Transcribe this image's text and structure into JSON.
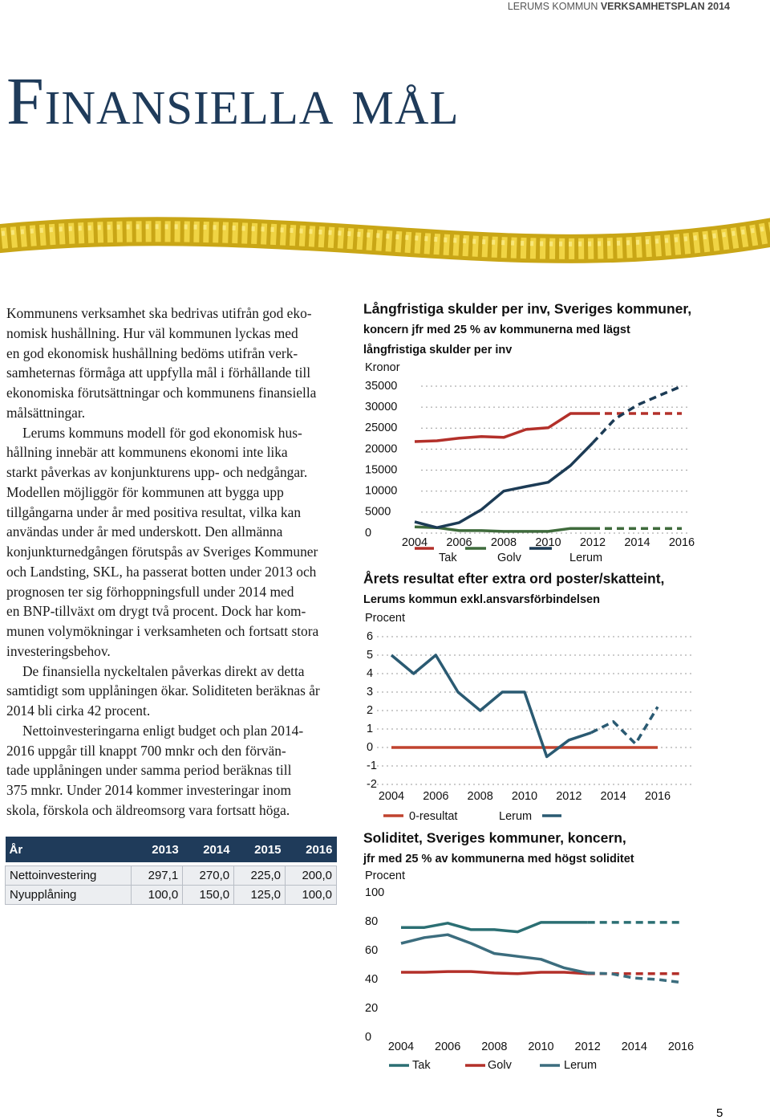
{
  "header": {
    "org": "LERUMS KOMMUN",
    "doc": "VERKSAMHETSPLAN 2014"
  },
  "title": "Finansiella mål",
  "paragraphs": [
    [
      "Kommunens verksamhet ska bedrivas utifrån god eko-",
      "nomisk hushållning. Hur väl kommunen lyckas med",
      "en god ekonomisk hushållning bedöms utifrån verk-",
      "samheternas förmåga att uppfylla mål i förhållande till",
      "ekonomiska förutsättningar och kommunens finansiella",
      "målsättningar."
    ],
    [
      "Lerums kommuns modell för god ekonomisk hus-",
      "hållning innebär att kommunens ekonomi inte lika",
      "starkt påverkas av konjunkturens upp- och nedgångar.",
      "Modellen möjliggör för kommunen att bygga upp",
      "tillgångarna under år med positiva resultat, vilka kan",
      "användas under år med underskott. Den allmänna",
      "konjunkturnedgången förutspås av Sveriges Kommuner",
      "och Landsting, SKL, ha passerat botten under 2013 och",
      "prognosen ter sig förhoppningsfull under 2014 med",
      "en BNP-tillväxt om drygt två procent. Dock har kom-",
      "munen volymökningar i verksamheten och fortsatt stora",
      "investeringsbehov."
    ],
    [
      "De finansiella nyckeltalen påverkas direkt av detta",
      "samtidigt som upplåningen ökar. Soliditeten beräknas år",
      "2014 bli cirka 42 procent."
    ],
    [
      "Nettoinvesteringarna enligt budget och plan 2014-",
      "2016 uppgår till knappt 700 mnkr och den förvän-",
      "tade upplåningen under samma period beräknas till",
      "375 mnkr. Under 2014 kommer investeringar inom",
      "skola, förskola och äldreomsorg vara fortsatt höga."
    ]
  ],
  "table": {
    "header": [
      "År",
      "2013",
      "2014",
      "2015",
      "2016"
    ],
    "rows": [
      [
        "Nettoinvestering",
        "297,1",
        "270,0",
        "225,0",
        "200,0"
      ],
      [
        "Nyupplåning",
        "100,0",
        "150,0",
        "125,0",
        "100,0"
      ]
    ]
  },
  "chart_data": [
    {
      "type": "line",
      "title": "Långfristiga skulder per inv, Sveriges kommuner,",
      "subtitle": [
        "koncern jfr med 25 % av kommunerna med lägst",
        "långfristiga skulder per inv"
      ],
      "y_label": "Kronor",
      "x": [
        2004,
        2005,
        2006,
        2007,
        2008,
        2009,
        2010,
        2011,
        2012,
        2013,
        2014,
        2015,
        2016
      ],
      "xlim": [
        2004,
        2016
      ],
      "xticks": [
        2004,
        2006,
        2008,
        2010,
        2012,
        2014,
        2016
      ],
      "ylim": [
        0,
        35000
      ],
      "yticks": [
        0,
        5000,
        10000,
        15000,
        20000,
        25000,
        30000,
        35000
      ],
      "grid": true,
      "dashed_from": 2012,
      "series": [
        {
          "name": "Tak",
          "color": "#b3302a",
          "values": [
            21800,
            22000,
            22600,
            23000,
            22800,
            24700,
            25100,
            28500,
            28500,
            28500,
            28500,
            28500,
            28500
          ]
        },
        {
          "name": "Golv",
          "color": "#3f6b3c",
          "values": [
            1500,
            1300,
            600,
            600,
            400,
            400,
            400,
            1100,
            1100,
            1100,
            1100,
            1100,
            1100
          ]
        },
        {
          "name": "Lerum",
          "color": "#1c3b55",
          "values": [
            2700,
            1300,
            2500,
            5600,
            10000,
            11100,
            12100,
            16100,
            21500,
            27200,
            30500,
            32800,
            35000
          ]
        }
      ]
    },
    {
      "type": "line",
      "title": "Årets resultat efter extra ord poster/skatteint,",
      "subtitle": [
        "Lerums kommun exkl.ansvarsförbindelsen"
      ],
      "y_label": "Procent",
      "x": [
        2004,
        2005,
        2006,
        2007,
        2008,
        2009,
        2010,
        2011,
        2012,
        2013,
        2014,
        2015,
        2016
      ],
      "xlim": [
        2004,
        2016
      ],
      "xticks": [
        2004,
        2006,
        2008,
        2010,
        2012,
        2014,
        2016
      ],
      "ylim": [
        -2,
        6
      ],
      "yticks": [
        -2,
        -1,
        0,
        1,
        2,
        3,
        4,
        5,
        6
      ],
      "grid": true,
      "dashed_from": 2013,
      "series": [
        {
          "name": "0-resultat",
          "color": "#c0432f",
          "values": [
            0,
            0,
            0,
            0,
            0,
            0,
            0,
            0,
            0,
            0,
            0,
            0,
            0
          ],
          "solid": true
        },
        {
          "name": "Lerum",
          "color": "#2a5a72",
          "values": [
            5,
            4,
            5,
            3,
            2,
            3,
            3,
            -0.5,
            0.4,
            0.8,
            1.4,
            0.2,
            2.2
          ]
        }
      ]
    },
    {
      "type": "line",
      "title": "Soliditet, Sveriges kommuner, koncern,",
      "subtitle": [
        "jfr med 25 % av kommunerna med högst soliditet"
      ],
      "y_label": "Procent",
      "x": [
        2004,
        2005,
        2006,
        2007,
        2008,
        2009,
        2010,
        2011,
        2012,
        2013,
        2014,
        2015,
        2016
      ],
      "xlim": [
        2004,
        2016
      ],
      "xticks": [
        2004,
        2006,
        2008,
        2010,
        2012,
        2014,
        2016
      ],
      "ylim": [
        0,
        100
      ],
      "yticks": [
        0,
        20,
        40,
        60,
        80,
        100
      ],
      "grid": false,
      "dashed_from": 2012,
      "series": [
        {
          "name": "Tak",
          "color": "#2b6f73",
          "values": [
            76,
            76,
            79,
            74.5,
            74.5,
            73,
            79.5,
            79.5,
            79.5,
            79.5,
            79.5,
            79.5,
            79.5
          ]
        },
        {
          "name": "Golv",
          "color": "#b3302a",
          "values": [
            45,
            45,
            45.5,
            45.5,
            44.5,
            44,
            45,
            45,
            44,
            44,
            44,
            44,
            44
          ]
        },
        {
          "name": "Lerum",
          "color": "#3c6d7e",
          "values": [
            65,
            69,
            71,
            65,
            58,
            56,
            54,
            48,
            44.5,
            44,
            41,
            40,
            38
          ]
        }
      ]
    }
  ],
  "page_number": "5"
}
